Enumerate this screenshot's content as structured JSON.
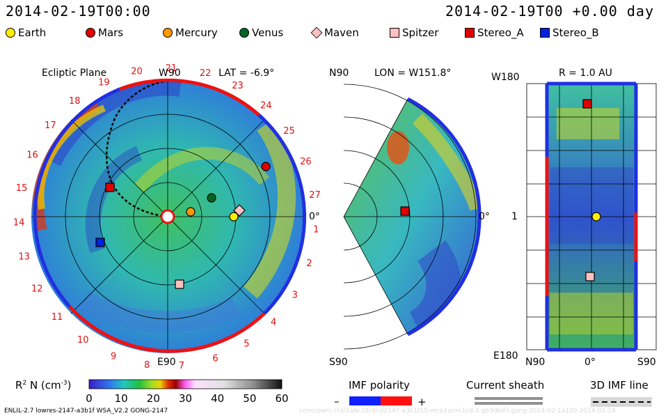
{
  "header": {
    "left_timestamp": "2014-02-19T00:00",
    "right_timestamp": "2014-02-19T00 +0.00 day"
  },
  "legend": [
    {
      "label": "Earth",
      "color": "#ffee00",
      "shape": "circle"
    },
    {
      "label": "Mars",
      "color": "#e00000",
      "shape": "circle"
    },
    {
      "label": "Mercury",
      "color": "#ff9900",
      "shape": "circle"
    },
    {
      "label": "Venus",
      "color": "#006622",
      "shape": "circle"
    },
    {
      "label": "Maven",
      "color": "#ffc0c0",
      "shape": "diamond"
    },
    {
      "label": "Spitzer",
      "color": "#ffc0c0",
      "shape": "square"
    },
    {
      "label": "Stereo_A",
      "color": "#e00000",
      "shape": "square"
    },
    {
      "label": "Stereo_B",
      "color": "#0022dd",
      "shape": "square"
    }
  ],
  "chart_data": [
    {
      "type": "heatmap",
      "title": "Ecliptic Plane",
      "top_label": "W90",
      "lat_label": "LAT = -6.9°",
      "bottom_label": "E90",
      "right_label": "0°",
      "sector_labels": [
        "20",
        "21",
        "22",
        "23",
        "24",
        "25",
        "26",
        "27",
        "1",
        "2",
        "3",
        "4",
        "5",
        "6",
        "7",
        "8",
        "9",
        "10",
        "11",
        "12",
        "13",
        "14",
        "15",
        "16",
        "17",
        "18",
        "19"
      ],
      "bodies": [
        {
          "name": "Earth",
          "shape": "circle",
          "color": "#ffee00"
        },
        {
          "name": "Mars",
          "shape": "circle",
          "color": "#e00000"
        },
        {
          "name": "Mercury",
          "shape": "circle",
          "color": "#ff9900"
        },
        {
          "name": "Venus",
          "shape": "circle",
          "color": "#006622"
        },
        {
          "name": "Maven",
          "shape": "diamond",
          "color": "#ffc0c0"
        },
        {
          "name": "Spitzer",
          "shape": "square",
          "color": "#ffc0c0"
        },
        {
          "name": "Stereo_A",
          "shape": "square",
          "color": "#e00000"
        },
        {
          "name": "Stereo_B",
          "shape": "square",
          "color": "#0022dd"
        }
      ]
    },
    {
      "type": "heatmap",
      "title": "LON = W151.8°",
      "top_label": "N90",
      "bottom_label": "S90",
      "right_label": "0°"
    },
    {
      "type": "heatmap",
      "title": "R = 1.0 AU",
      "top_label": "W180",
      "bottom_label": "E180",
      "mid_label": "1",
      "x_labels": [
        "N90",
        "0°",
        "S90"
      ]
    }
  ],
  "colorbar": {
    "label_prefix": "R",
    "label_sup": "2",
    "label_mid": " N (cm",
    "label_sup2": "-3",
    "label_end": ")",
    "ticks": [
      "0",
      "10",
      "20",
      "30",
      "40",
      "50",
      "60"
    ],
    "min": 0,
    "max": 60
  },
  "imf": {
    "title": "IMF polarity",
    "minus": "–",
    "plus": "+"
  },
  "sheath": {
    "title": "Current sheath"
  },
  "imf3d": {
    "title": "3D IMF line"
  },
  "footer": "ENLIL-2.7 lowres-2147-a3b1f WSA_V2.2 GONG-2147",
  "watermark": "ccmc/swrc-cld/2a6c38c6cd2147-a3b1f15-mcp1umn1cd-1.gb3dbd3.gong-2014-02-1a100     2014-02-19"
}
